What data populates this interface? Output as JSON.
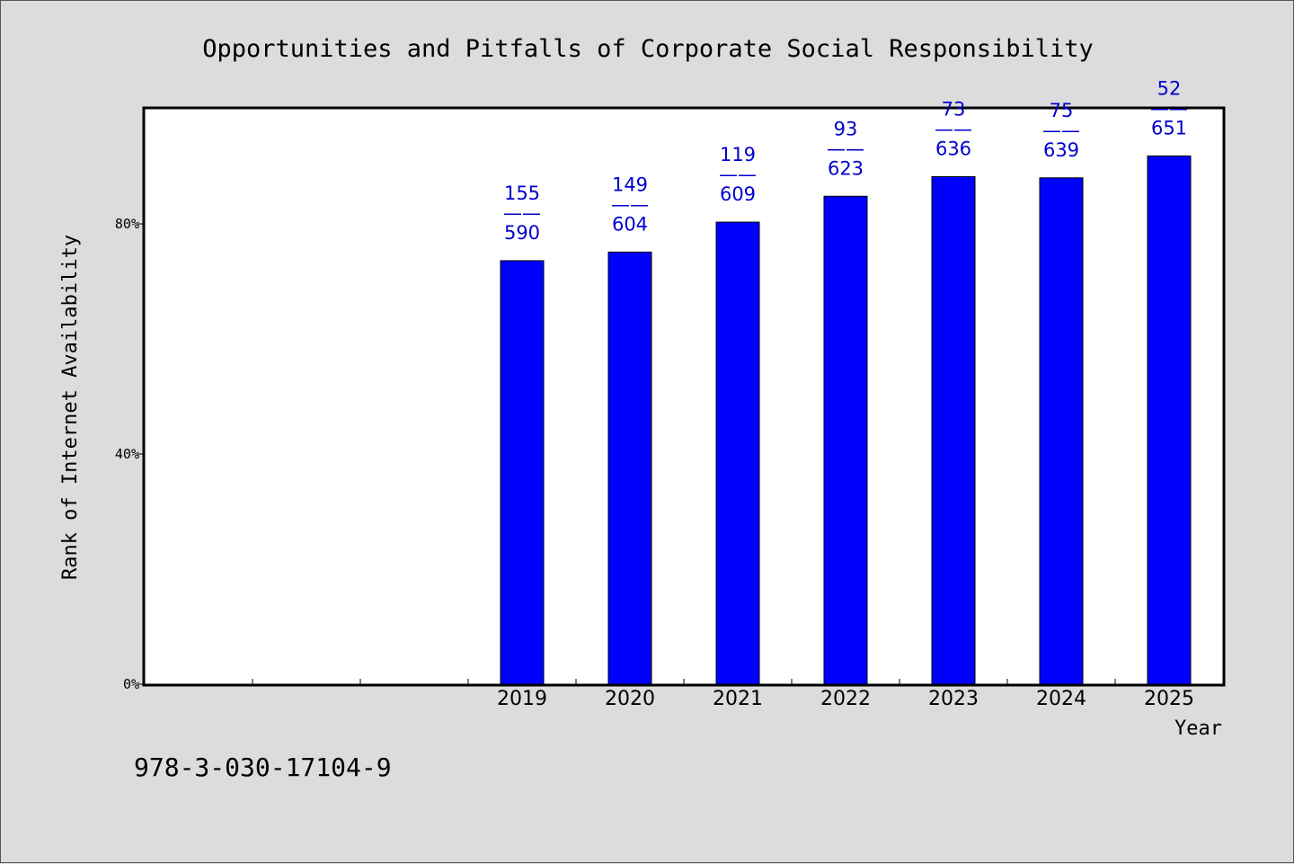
{
  "chart_data": {
    "type": "bar",
    "title": "Opportunities and Pitfalls of Corporate Social Responsibility",
    "xlabel": "Year",
    "ylabel": "Rank of Internet Availability",
    "ylim": [
      0,
      100
    ],
    "yticks": [
      {
        "value": 0,
        "label": "0%"
      },
      {
        "value": 40,
        "label": "40%"
      },
      {
        "value": 80,
        "label": "80%"
      }
    ],
    "x_slots": 10,
    "categories": [
      "2019",
      "2020",
      "2021",
      "2022",
      "2023",
      "2024",
      "2025"
    ],
    "values": [
      73.6,
      75.1,
      80.3,
      84.8,
      88.2,
      88.0,
      91.8
    ],
    "labels": [
      {
        "top": "155",
        "sep": "——",
        "bottom": "590"
      },
      {
        "top": "149",
        "sep": "——",
        "bottom": "604"
      },
      {
        "top": "119",
        "sep": "——",
        "bottom": "609"
      },
      {
        "top": "93",
        "sep": "——",
        "bottom": "623"
      },
      {
        "top": "73",
        "sep": "——",
        "bottom": "636"
      },
      {
        "top": "75",
        "sep": "——",
        "bottom": "639"
      },
      {
        "top": "52",
        "sep": "——",
        "bottom": "651"
      }
    ],
    "bar_color": "#0000ff",
    "label_color": "#0000cc",
    "grid": false,
    "legend": "none"
  },
  "footer": {
    "isbn": "978-3-030-17104-9"
  }
}
